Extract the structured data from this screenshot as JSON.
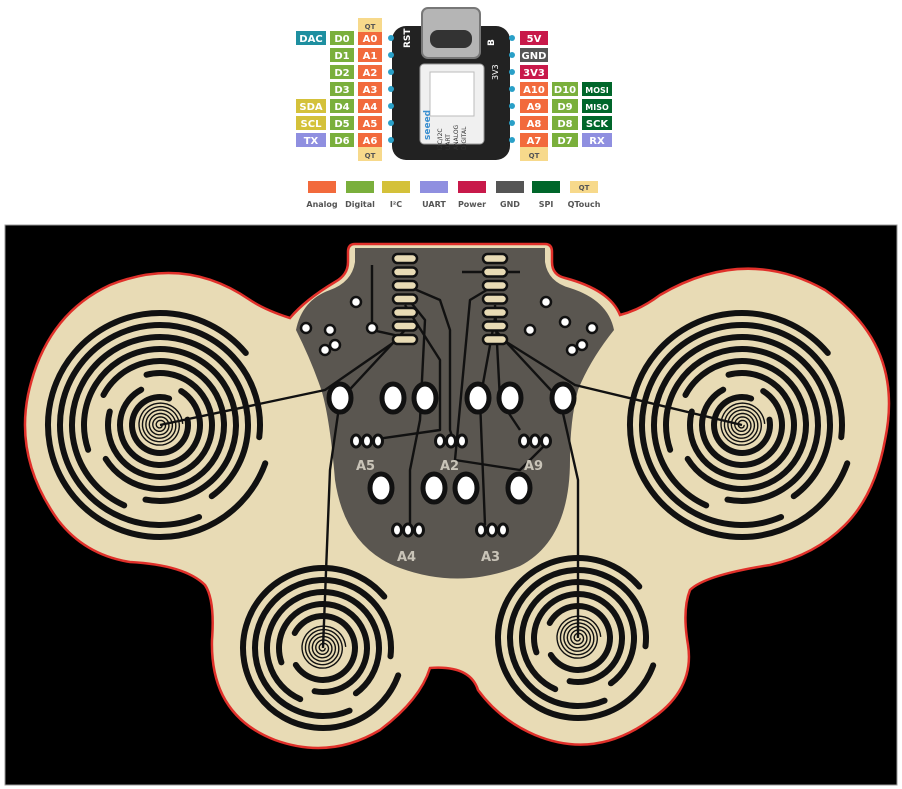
{
  "pinout": {
    "left_pins": [
      {
        "func": "DAC",
        "digital": "D0",
        "analog": "A0",
        "qt": "QT",
        "func_color": "#1e8fa0"
      },
      {
        "func": "",
        "digital": "D1",
        "analog": "A1",
        "qt": ""
      },
      {
        "func": "",
        "digital": "D2",
        "analog": "A2",
        "qt": ""
      },
      {
        "func": "",
        "digital": "D3",
        "analog": "A3",
        "qt": ""
      },
      {
        "func": "SDA",
        "digital": "D4",
        "analog": "A4",
        "qt": "",
        "func_color": "#d4c13a"
      },
      {
        "func": "SCL",
        "digital": "D5",
        "analog": "A5",
        "qt": "",
        "func_color": "#d4c13a"
      },
      {
        "func": "TX",
        "digital": "D6",
        "analog": "A6",
        "qt": "QT",
        "func_color": "#8f8fe0"
      }
    ],
    "right_pins": [
      {
        "label": "5V",
        "color": "#c8194a"
      },
      {
        "label": "GND",
        "color": "#555555"
      },
      {
        "label": "3V3",
        "color": "#c8194a"
      },
      {
        "analog": "A10",
        "digital": "D10",
        "func": "MOSI",
        "func_color": "#00662a"
      },
      {
        "analog": "A9",
        "digital": "D9",
        "func": "MISO",
        "func_color": "#00662a"
      },
      {
        "analog": "A8",
        "digital": "D8",
        "func": "SCK",
        "func_color": "#00662a"
      },
      {
        "analog": "A7",
        "digital": "D7",
        "func": "RX",
        "func_color": "#8f8fe0",
        "qt": "QT"
      }
    ],
    "board_marks": {
      "rst": "RST",
      "bt": "B",
      "rail": "3V3",
      "brand": "seeed",
      "legend_lines": [
        "I2C/I2C",
        "UART",
        "ANALOG",
        "DIGITAL"
      ]
    },
    "legend": [
      {
        "label": "Analog",
        "color": "#f26a3c"
      },
      {
        "label": "Digital",
        "color": "#7aaf3c"
      },
      {
        "label": "I²C",
        "color": "#d4c13a"
      },
      {
        "label": "UART",
        "color": "#8f8fe0"
      },
      {
        "label": "Power",
        "color": "#c8194a"
      },
      {
        "label": "GND",
        "color": "#555555"
      },
      {
        "label": "SPI",
        "color": "#00662a"
      },
      {
        "label": "QTouch",
        "color": "#f7d98b",
        "badge": "QT"
      }
    ]
  },
  "pcb": {
    "pad_labels": [
      "A5",
      "A2",
      "A9",
      "A4",
      "A3"
    ],
    "colors": {
      "board": "#e8dbb5",
      "copper": "#111111",
      "mask": "#5a5650",
      "outline": "#e0302a",
      "background": "#000000"
    }
  }
}
